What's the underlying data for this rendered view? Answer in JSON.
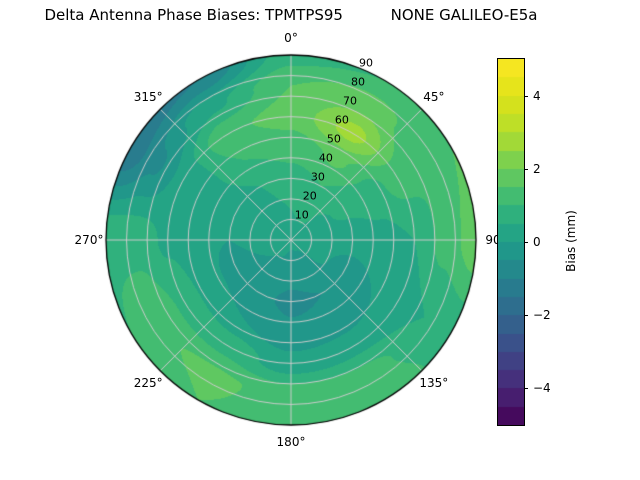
{
  "title": "Delta Antenna Phase Biases: TPMTPS95          NONE GALILEO-E5a",
  "chart_data": {
    "type": "heatmap",
    "projection": "polar",
    "title": "Delta Antenna Phase Biases: TPMTPS95          NONE GALILEO-E5a",
    "colormap": "viridis",
    "grid_color": "#cccccc",
    "spine_color": "#000000",
    "background": "#ffffff",
    "colorbar": {
      "label": "Bias (mm)",
      "range": [
        -5,
        5
      ],
      "level_step": 0.5,
      "ticks": [
        {
          "label": "4",
          "value": 4
        },
        {
          "label": "2",
          "value": 2
        },
        {
          "label": "0",
          "value": 0
        },
        {
          "label": "−2",
          "value": -2
        },
        {
          "label": "−4",
          "value": -4
        }
      ]
    },
    "azimuth_labels": [
      {
        "text": "0°",
        "deg": 0
      },
      {
        "text": "45°",
        "deg": 45
      },
      {
        "text": "90",
        "deg": 90
      },
      {
        "text": "135°",
        "deg": 135
      },
      {
        "text": "180°",
        "deg": 180
      },
      {
        "text": "225°",
        "deg": 225
      },
      {
        "text": "270°",
        "deg": 270
      },
      {
        "text": "315°",
        "deg": 315
      }
    ],
    "radial_ticks": [
      10,
      20,
      30,
      40,
      50,
      60,
      70,
      80,
      90
    ],
    "radial_label_azimuth_deg": 23,
    "azimuth_deg": [
      0,
      30,
      60,
      90,
      120,
      150,
      180,
      210,
      240,
      270,
      300,
      330
    ],
    "zenith_deg": [
      0,
      15,
      30,
      45,
      60,
      75,
      90
    ],
    "values": [
      [
        0.3,
        0.5,
        0.8,
        1.2,
        1.7,
        1.5,
        0.8
      ],
      [
        0.3,
        0.6,
        1.0,
        1.6,
        2.7,
        1.8,
        1.0
      ],
      [
        0.3,
        0.4,
        0.6,
        0.8,
        1.2,
        1.0,
        1.5
      ],
      [
        0.2,
        0.2,
        0.2,
        0.3,
        0.5,
        1.2,
        1.8
      ],
      [
        0.2,
        0.1,
        -0.2,
        0.0,
        0.3,
        0.5,
        0.7
      ],
      [
        0.1,
        -0.2,
        -0.5,
        -0.3,
        0.3,
        1.2,
        1.4
      ],
      [
        0.1,
        -0.3,
        -0.6,
        -0.4,
        0.2,
        1.3,
        1.2
      ],
      [
        0.2,
        -0.1,
        -0.4,
        0.0,
        0.8,
        1.6,
        1.5
      ],
      [
        0.2,
        0.0,
        -0.2,
        0.2,
        0.9,
        1.4,
        1.0
      ],
      [
        0.2,
        0.1,
        0.0,
        0.1,
        0.4,
        0.8,
        0.9
      ],
      [
        0.2,
        0.2,
        0.2,
        0.3,
        0.2,
        -0.6,
        -1.4
      ],
      [
        0.3,
        0.4,
        0.5,
        1.0,
        1.4,
        0.4,
        -1.0
      ]
    ]
  }
}
